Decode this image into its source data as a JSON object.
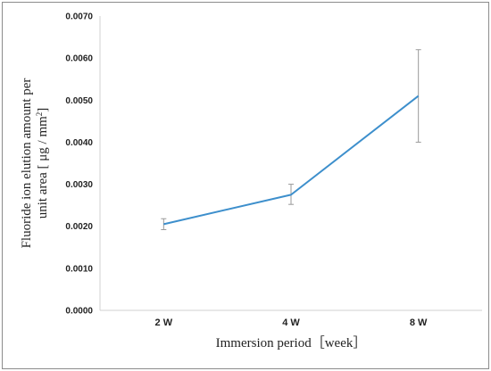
{
  "chart_data": {
    "type": "line",
    "categories": [
      "2 W",
      "4 W",
      "8 W"
    ],
    "series": [
      {
        "values": [
          0.00205,
          0.00275,
          0.0051
        ],
        "error_low": [
          0.00192,
          0.00252,
          0.004
        ],
        "error_high": [
          0.00218,
          0.003,
          0.0062
        ],
        "color": "#3d8fcc"
      }
    ],
    "yticks": [
      "0.0000",
      "0.0010",
      "0.0020",
      "0.0030",
      "0.0040",
      "0.0050",
      "0.0060",
      "0.0070"
    ],
    "ylim": [
      0,
      0.007
    ],
    "xlabel": "Immersion period［week］",
    "ylabel_line1": "Fluoride ion elution amount per",
    "ylabel_line2_prefix": "unit area [ μg / mm",
    "ylabel_line2_sup": "2",
    "ylabel_line2_suffix": "]",
    "grid": false,
    "error_bar_color": "#9a9a9a"
  }
}
